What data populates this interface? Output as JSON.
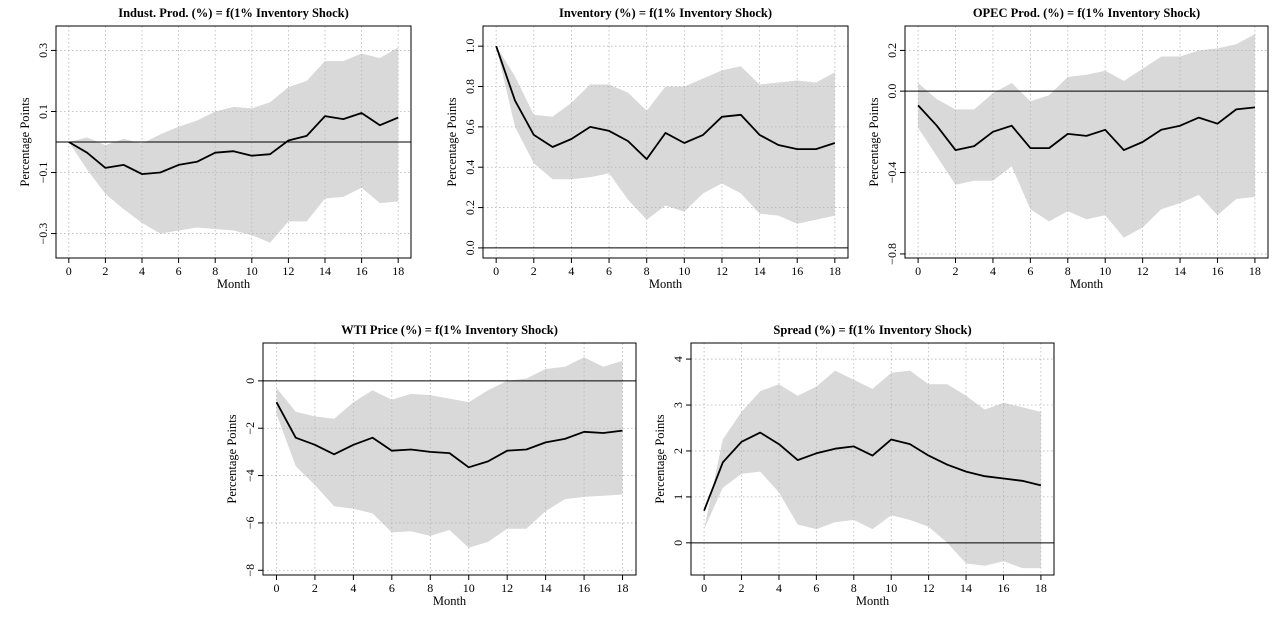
{
  "chart_data": [
    {
      "type": "line",
      "title": "Indust. Prod. (%) = f(1% Inventory Shock)",
      "xlabel": "Month",
      "ylabel": "Percentage Points",
      "xlim": [
        -0.7,
        18.7
      ],
      "ylim": [
        -0.38,
        0.38
      ],
      "xticks": [
        0,
        2,
        4,
        6,
        8,
        10,
        12,
        14,
        16,
        18
      ],
      "xtick_labels": [
        "0",
        "2",
        "4",
        "6",
        "8",
        "10",
        "12",
        "14",
        "16",
        "18"
      ],
      "yticks": [
        -0.3,
        -0.1,
        0.1,
        0.3
      ],
      "ytick_labels": [
        "−0.3",
        "−0.1",
        "0.1",
        "0.3"
      ],
      "reference_line": 0,
      "grid": true,
      "x": [
        0,
        1,
        2,
        3,
        4,
        5,
        6,
        7,
        8,
        9,
        10,
        11,
        12,
        13,
        14,
        15,
        16,
        17,
        18
      ],
      "series": [
        {
          "values": [
            0,
            -0.035,
            -0.085,
            -0.075,
            -0.105,
            -0.1,
            -0.075,
            -0.065,
            -0.035,
            -0.03,
            -0.045,
            -0.04,
            0.005,
            0.02,
            0.085,
            0.075,
            0.095,
            0.055,
            0.08
          ]
        }
      ],
      "band_upper": [
        0,
        0.015,
        -0.01,
        0.01,
        -0.005,
        0.025,
        0.05,
        0.07,
        0.1,
        0.115,
        0.11,
        0.13,
        0.18,
        0.2,
        0.265,
        0.265,
        0.29,
        0.275,
        0.31
      ],
      "band_lower": [
        0,
        -0.09,
        -0.17,
        -0.22,
        -0.265,
        -0.3,
        -0.29,
        -0.28,
        -0.285,
        -0.29,
        -0.305,
        -0.33,
        -0.26,
        -0.26,
        -0.185,
        -0.18,
        -0.15,
        -0.2,
        -0.195
      ],
      "band_color": "#d9d9d9",
      "line_color": "#000000"
    },
    {
      "type": "line",
      "title": "Inventory (%) = f(1% Inventory Shock)",
      "xlabel": "Month",
      "ylabel": "Percentage Points",
      "xlim": [
        -0.7,
        18.7
      ],
      "ylim": [
        -0.05,
        1.1
      ],
      "xticks": [
        0,
        2,
        4,
        6,
        8,
        10,
        12,
        14,
        16,
        18
      ],
      "xtick_labels": [
        "0",
        "2",
        "4",
        "6",
        "8",
        "10",
        "12",
        "14",
        "16",
        "18"
      ],
      "yticks": [
        0.0,
        0.2,
        0.4,
        0.6,
        0.8,
        1.0
      ],
      "ytick_labels": [
        "0.0",
        "0.2",
        "0.4",
        "0.6",
        "0.8",
        "1.0"
      ],
      "reference_line": 0,
      "grid": true,
      "x": [
        0,
        1,
        2,
        3,
        4,
        5,
        6,
        7,
        8,
        9,
        10,
        11,
        12,
        13,
        14,
        15,
        16,
        17,
        18
      ],
      "series": [
        {
          "values": [
            1.0,
            0.73,
            0.56,
            0.5,
            0.54,
            0.6,
            0.58,
            0.53,
            0.44,
            0.57,
            0.52,
            0.56,
            0.65,
            0.66,
            0.56,
            0.51,
            0.49,
            0.49,
            0.52
          ]
        }
      ],
      "band_upper": [
        1.0,
        0.85,
        0.66,
        0.65,
        0.72,
        0.81,
        0.81,
        0.77,
        0.68,
        0.8,
        0.8,
        0.84,
        0.88,
        0.9,
        0.81,
        0.82,
        0.83,
        0.82,
        0.87
      ],
      "band_lower": [
        1.0,
        0.6,
        0.42,
        0.34,
        0.34,
        0.35,
        0.37,
        0.24,
        0.14,
        0.21,
        0.18,
        0.27,
        0.32,
        0.27,
        0.17,
        0.16,
        0.12,
        0.14,
        0.16
      ],
      "band_color": "#d9d9d9",
      "line_color": "#000000"
    },
    {
      "type": "line",
      "title": "OPEC Prod. (%) = f(1% Inventory Shock)",
      "xlabel": "Month",
      "ylabel": "Percentage Points",
      "xlim": [
        -0.7,
        18.7
      ],
      "ylim": [
        -0.82,
        0.32
      ],
      "xticks": [
        0,
        2,
        4,
        6,
        8,
        10,
        12,
        14,
        16,
        18
      ],
      "xtick_labels": [
        "0",
        "2",
        "4",
        "6",
        "8",
        "10",
        "12",
        "14",
        "16",
        "18"
      ],
      "yticks": [
        -0.8,
        -0.4,
        0.0,
        0.2
      ],
      "ytick_labels": [
        "−0.8",
        "−0.4",
        "0.0",
        "0.2"
      ],
      "reference_line": 0,
      "grid": true,
      "x": [
        0,
        1,
        2,
        3,
        4,
        5,
        6,
        7,
        8,
        9,
        10,
        11,
        12,
        13,
        14,
        15,
        16,
        17,
        18
      ],
      "series": [
        {
          "values": [
            -0.07,
            -0.17,
            -0.29,
            -0.27,
            -0.2,
            -0.17,
            -0.28,
            -0.28,
            -0.21,
            -0.22,
            -0.19,
            -0.29,
            -0.25,
            -0.19,
            -0.17,
            -0.13,
            -0.16,
            -0.09,
            -0.08
          ]
        }
      ],
      "band_upper": [
        0.04,
        -0.04,
        -0.09,
        -0.09,
        -0.01,
        0.04,
        -0.05,
        -0.02,
        0.07,
        0.08,
        0.1,
        0.05,
        0.11,
        0.17,
        0.17,
        0.2,
        0.21,
        0.23,
        0.28
      ],
      "band_lower": [
        -0.18,
        -0.32,
        -0.46,
        -0.44,
        -0.44,
        -0.37,
        -0.58,
        -0.64,
        -0.59,
        -0.63,
        -0.61,
        -0.72,
        -0.67,
        -0.58,
        -0.55,
        -0.51,
        -0.61,
        -0.53,
        -0.52
      ],
      "band_color": "#d9d9d9",
      "line_color": "#000000"
    },
    {
      "type": "line",
      "title": "WTI Price (%) = f(1% Inventory Shock)",
      "xlabel": "Month",
      "ylabel": "Percentage Points",
      "xlim": [
        -0.7,
        18.7
      ],
      "ylim": [
        -8.2,
        1.6
      ],
      "xticks": [
        0,
        2,
        4,
        6,
        8,
        10,
        12,
        14,
        16,
        18
      ],
      "xtick_labels": [
        "0",
        "2",
        "4",
        "6",
        "8",
        "10",
        "12",
        "14",
        "16",
        "18"
      ],
      "yticks": [
        -8,
        -6,
        -4,
        -2,
        0
      ],
      "ytick_labels": [
        "−8",
        "−6",
        "−4",
        "−2",
        "0"
      ],
      "reference_line": 0,
      "grid": true,
      "x": [
        0,
        1,
        2,
        3,
        4,
        5,
        6,
        7,
        8,
        9,
        10,
        11,
        12,
        13,
        14,
        15,
        16,
        17,
        18
      ],
      "series": [
        {
          "values": [
            -0.9,
            -2.4,
            -2.7,
            -3.1,
            -2.7,
            -2.4,
            -2.95,
            -2.9,
            -3.0,
            -3.05,
            -3.65,
            -3.4,
            -2.95,
            -2.9,
            -2.6,
            -2.45,
            -2.15,
            -2.2,
            -2.1
          ]
        }
      ],
      "band_upper": [
        -0.3,
        -1.3,
        -1.5,
        -1.6,
        -0.9,
        -0.4,
        -0.8,
        -0.55,
        -0.6,
        -0.75,
        -0.9,
        -0.4,
        0.0,
        0.1,
        0.5,
        0.6,
        1.0,
        0.6,
        0.85
      ],
      "band_lower": [
        -1.4,
        -3.6,
        -4.4,
        -5.3,
        -5.4,
        -5.6,
        -6.4,
        -6.35,
        -6.55,
        -6.3,
        -7.05,
        -6.8,
        -6.25,
        -6.25,
        -5.5,
        -5.0,
        -4.9,
        -4.85,
        -4.8
      ],
      "band_color": "#d9d9d9",
      "line_color": "#000000"
    },
    {
      "type": "line",
      "title": "Spread (%) = f(1% Inventory Shock)",
      "xlabel": "Month",
      "ylabel": "Percentage Points",
      "xlim": [
        -0.7,
        18.7
      ],
      "ylim": [
        -0.7,
        4.35
      ],
      "xticks": [
        0,
        2,
        4,
        6,
        8,
        10,
        12,
        14,
        16,
        18
      ],
      "xtick_labels": [
        "0",
        "2",
        "4",
        "6",
        "8",
        "10",
        "12",
        "14",
        "16",
        "18"
      ],
      "yticks": [
        0,
        1,
        2,
        3,
        4
      ],
      "ytick_labels": [
        "0",
        "1",
        "2",
        "3",
        "4"
      ],
      "reference_line": 0,
      "grid": true,
      "x": [
        0,
        1,
        2,
        3,
        4,
        5,
        6,
        7,
        8,
        9,
        10,
        11,
        12,
        13,
        14,
        15,
        16,
        17,
        18
      ],
      "series": [
        {
          "values": [
            0.7,
            1.75,
            2.2,
            2.4,
            2.15,
            1.8,
            1.95,
            2.05,
            2.1,
            1.9,
            2.25,
            2.15,
            1.9,
            1.7,
            1.55,
            1.45,
            1.4,
            1.35,
            1.25
          ]
        }
      ],
      "band_upper": [
        0.3,
        2.25,
        2.85,
        3.3,
        3.45,
        3.2,
        3.4,
        3.75,
        3.55,
        3.35,
        3.7,
        3.75,
        3.45,
        3.45,
        3.2,
        2.9,
        3.05,
        2.95,
        2.85
      ],
      "band_lower": [
        0.3,
        1.2,
        1.5,
        1.55,
        1.1,
        0.4,
        0.3,
        0.45,
        0.5,
        0.3,
        0.6,
        0.5,
        0.35,
        0.0,
        -0.45,
        -0.5,
        -0.4,
        -0.55,
        -0.55
      ],
      "band_color": "#d9d9d9",
      "line_color": "#000000"
    }
  ]
}
